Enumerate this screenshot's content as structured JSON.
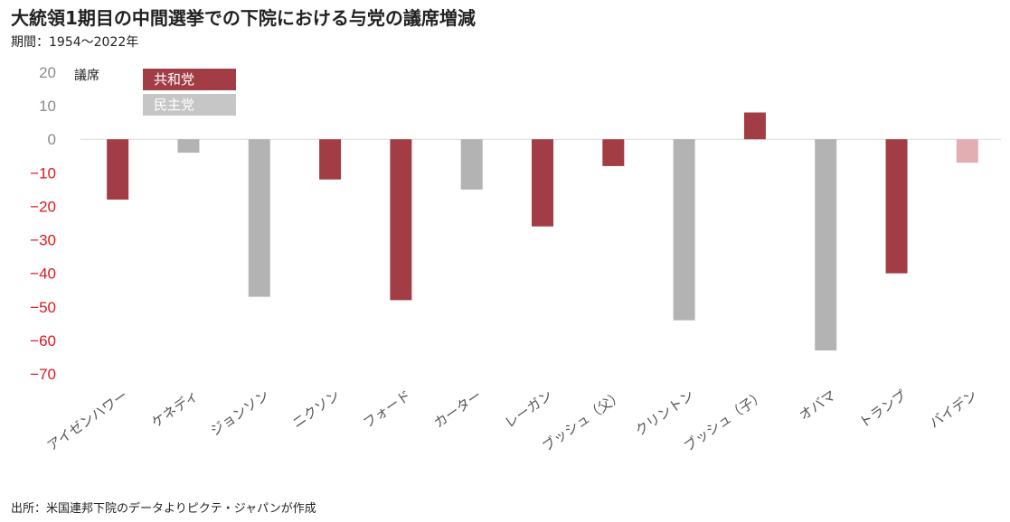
{
  "title": "大統領1期目の中間選挙での下院における与党の議席増減",
  "subtitle": "期間：1954～2022年",
  "source": "出所：米国連邦下院のデータよりピクテ・ジャパンが作成",
  "colors": {
    "republican": "#a33d45",
    "democrat": "#b3b3b3",
    "pending": "#e3aeb2",
    "negative_tick": "#e0161e",
    "positive_tick": "#8a8a8a"
  },
  "chart_data": {
    "type": "bar",
    "ylabel": "議席",
    "ylim": [
      -70,
      20
    ],
    "yticks": [
      20,
      10,
      0,
      -10,
      -20,
      -30,
      -40,
      -50,
      -60,
      -70
    ],
    "grid": false,
    "legend": {
      "placement": "top-left",
      "entries": [
        {
          "name": "共和党",
          "color": "#a33d45"
        },
        {
          "name": "民主党",
          "color": "#b3b3b3"
        }
      ]
    },
    "categories": [
      "アイゼンハワー",
      "ケネディ",
      "ジョンソン",
      "ニクソン",
      "フォード",
      "カーター",
      "レーガン",
      "ブッシュ（父）",
      "クリントン",
      "ブッシュ（子）",
      "オバマ",
      "トランプ",
      "バイデン"
    ],
    "values": [
      -18,
      -4,
      -47,
      -12,
      -48,
      -15,
      -26,
      -8,
      -54,
      8,
      -63,
      -40,
      -7
    ],
    "party": [
      "republican",
      "democrat",
      "democrat",
      "republican",
      "republican",
      "democrat",
      "republican",
      "republican",
      "democrat",
      "republican",
      "democrat",
      "republican",
      "pending"
    ]
  }
}
